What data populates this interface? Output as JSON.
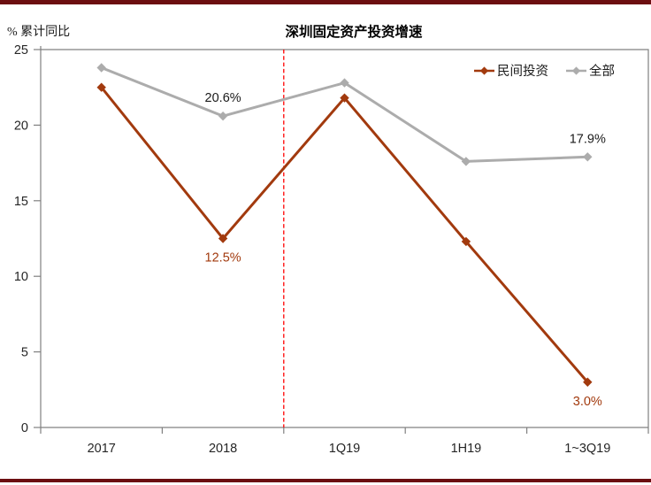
{
  "header": {
    "y_axis_unit": "% 累计同比",
    "title": "深圳固定资产投资增速"
  },
  "chart_data": {
    "type": "line",
    "title": "深圳固定资产投资增速",
    "ylabel": "% 累计同比",
    "categories": [
      "2017",
      "2018",
      "1Q19",
      "1H19",
      "1~3Q19"
    ],
    "series": [
      {
        "name": "民间投资",
        "color": "#A23A0E",
        "marker": "diamond",
        "values": [
          22.5,
          12.5,
          21.8,
          12.3,
          3.0
        ],
        "data_labels": [
          null,
          "12.5%",
          null,
          null,
          "3.0%"
        ],
        "label_placement": "below",
        "label_color": "#A23A0E"
      },
      {
        "name": "全部",
        "color": "#ACACAC",
        "marker": "diamond",
        "values": [
          23.8,
          20.6,
          22.8,
          17.6,
          17.9
        ],
        "data_labels": [
          null,
          "20.6%",
          null,
          null,
          "17.9%"
        ],
        "label_placement": "above",
        "label_color": "#1A1A1A"
      }
    ],
    "ylim": [
      0,
      25
    ],
    "yticks": [
      0,
      5,
      10,
      15,
      20,
      25
    ],
    "grid": false,
    "legend_position": "top-right-inside",
    "legend_order": [
      "民间投资",
      "全部"
    ],
    "vline": {
      "after_category": "2018",
      "style": "dashed",
      "color": "#FF0000"
    }
  },
  "colors": {
    "divider_bar": "#6C0E11",
    "axis": "#808080",
    "tick_label": "#262626"
  }
}
